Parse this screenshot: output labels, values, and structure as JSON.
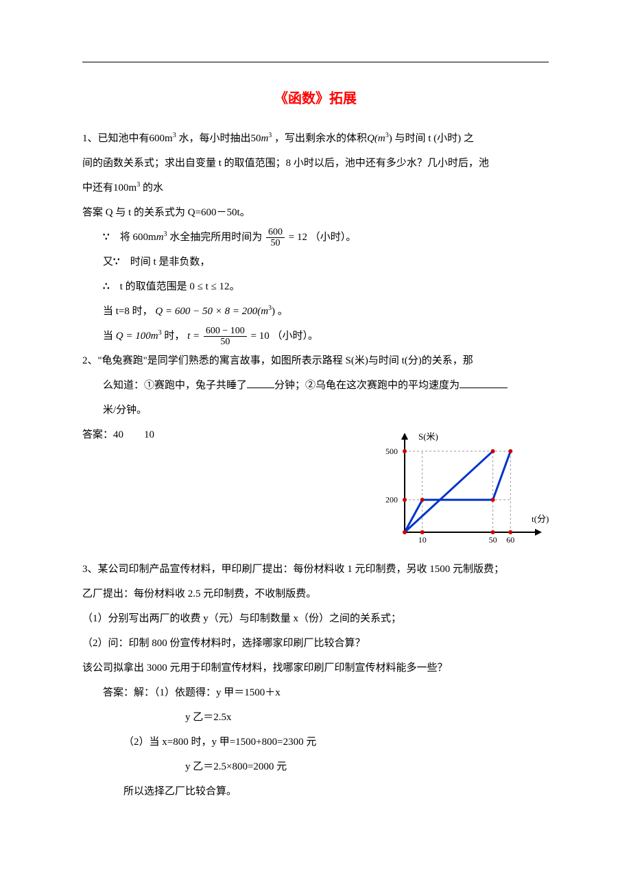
{
  "title_color": "#ff0000",
  "title": "《函数》拓展",
  "p1_l1a": "1、已知池中有",
  "p1_v600": "600m",
  "p1_l1b": "水，每小时抽出",
  "p1_v50": "50",
  "p1_m": "m",
  "p1_l1c": "，写出剩余水的体积",
  "p1_Q": "Q(m",
  "p1_l1d": ") 与时间 t (小时) 之",
  "p1_l2": "间的函数关系式；求出自变量 t 的取值范围；8 小时以后，池中还有多少水？几小时后，池",
  "p1_l3a": "中还有",
  "p1_v100": "100m",
  "p1_l3b": " 的水",
  "p1_ans1": "答案 Q 与 t 的关系式为 Q=600－50t。",
  "p1_s1a": "将",
  "p1_s1b": "水全抽完所用时间为",
  "p1_s1c": "（小时）。",
  "frac1_num": "600",
  "frac1_den": "50",
  "frac1_eq": "= 12",
  "p1_s2": "又",
  "p1_s2b": "时间 t 是非负数，",
  "p1_s3a": "t 的取值范围是",
  "p1_s3b": "0 ≤ t ≤ 12",
  "p1_s3c": "。",
  "p1_s4": "当 t=8 时，",
  "p1_s4eq": "Q = 600 − 50 × 8 = 200(m",
  "p1_s4c": ") 。",
  "p1_s5a": "当",
  "p1_s5b": "Q = 100m",
  "p1_s5c": "时，",
  "p1_s5d": "t =",
  "frac2_num": "600 − 100",
  "frac2_den": "50",
  "frac2_eq": "= 10",
  "p1_s5e": "（小时）。",
  "p2_l1": "2、\"龟兔赛跑\"是同学们熟悉的寓言故事，如图所表示路程 S(米)与时间 t(分)的关系，那",
  "p2_l2a": "么知道：①赛跑中，兔子共睡了",
  "p2_l2b": "分钟；②乌龟在这次赛跑中的平均速度为",
  "p2_l3": "米/分钟。",
  "p2_ans": "答案：40　　10",
  "chart": {
    "y_label": "S(米)",
    "x_label": "t(分)",
    "y_ticks": [
      "500",
      "200"
    ],
    "x_ticks": [
      "10",
      "50",
      "60"
    ],
    "axis_color": "#000000",
    "line_color": "#0033cc",
    "dot_color": "#cc0000",
    "dash_color": "#999999",
    "line_width": 3,
    "tortoise": [
      [
        0,
        0
      ],
      [
        50,
        500
      ]
    ],
    "hare": [
      [
        0,
        0
      ],
      [
        10,
        200
      ],
      [
        50,
        200
      ],
      [
        60,
        500
      ]
    ],
    "horiz_dash_y": [
      200,
      500
    ],
    "vert_dash_x": [
      10,
      50,
      60
    ]
  },
  "p3_l1": "3、某公司印制产品宣传材料，甲印刷厂提出：每份材料收 1 元印制费，另收 1500 元制版费；",
  "p3_l2": "乙厂提出：每份材料收 2.5 元印制费，不收制版费。",
  "p3_q1": "（1）分别写出两厂的收费 y（元）与印制数量 x（份）之间的关系式；",
  "p3_q2": "（2）问：印制 800 份宣传材料时，选择哪家印刷厂比较合算？",
  "p3_q3": "该公司拟拿出 3000 元用于印制宣传材料，找哪家印刷厂印制宣传材料能多一些？",
  "p3_a1": "答案：解：（1）依题得：y 甲＝1500＋x",
  "p3_a2": "y 乙＝2.5x",
  "p3_a3": "（2）当 x=800 时，y 甲=1500+800=2300 元",
  "p3_a4": "y 乙＝2.5×800=2000 元",
  "p3_a5": "所以选择乙厂比较合算。"
}
